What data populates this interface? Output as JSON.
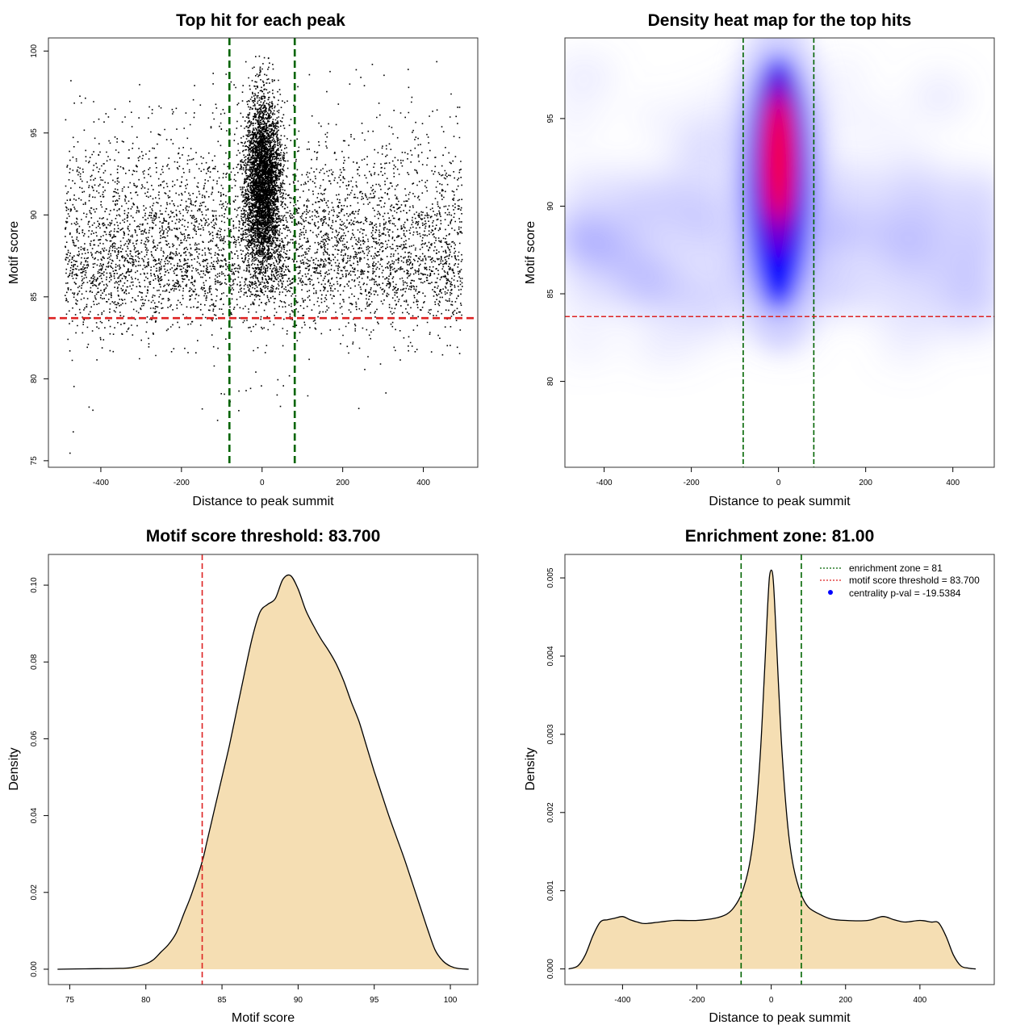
{
  "colors": {
    "threshold_line": "#dd2222",
    "zone_line": "#006400",
    "density_fill": "#f5deb3",
    "heat_low": "#ffffff",
    "heat_mid": "#0000ff",
    "heat_high": "#ff0000",
    "points": "#000000"
  },
  "chart_data": [
    {
      "id": "scatter",
      "type": "scatter",
      "title": "Top hit for each peak",
      "xlabel": "Distance to peak summit",
      "ylabel": "Motif score",
      "xlim": [
        -530,
        535
      ],
      "ylim": [
        74.6,
        100.8
      ],
      "xticks": [
        -400,
        -200,
        0,
        200,
        400
      ],
      "yticks": [
        75,
        80,
        85,
        90,
        95,
        100
      ],
      "hlines": [
        {
          "value": 83.7,
          "color": "threshold",
          "style": "dashed"
        }
      ],
      "vlines": [
        {
          "value": -81,
          "color": "zone",
          "style": "dashed"
        },
        {
          "value": 81,
          "color": "zone",
          "style": "dashed"
        }
      ],
      "grid": false,
      "data_description": {
        "x_range": [
          -490,
          495
        ],
        "score_range": [
          75.5,
          99.8
        ],
        "background_score_mode": 87.5,
        "central_score_mode": 92,
        "central_spread": 22
      }
    },
    {
      "id": "heatmap",
      "type": "heatmap",
      "title": "Density heat map for the top hits",
      "xlabel": "Distance to peak summit",
      "ylabel": "Motif score",
      "xlim": [
        -490,
        495
      ],
      "ylim": [
        75.1,
        99.6
      ],
      "xticks": [
        -400,
        -200,
        0,
        200,
        400
      ],
      "yticks": [
        80,
        85,
        90,
        95
      ],
      "hlines": [
        {
          "value": 83.7,
          "color": "threshold",
          "style": "dashed"
        }
      ],
      "vlines": [
        {
          "value": -81,
          "color": "zone",
          "style": "dashed"
        },
        {
          "value": 81,
          "color": "zone",
          "style": "dashed"
        }
      ],
      "colorscale": [
        "white",
        "blue",
        "red"
      ],
      "hotspot": {
        "x": 0,
        "y": 92.5
      }
    },
    {
      "id": "score_density",
      "type": "area",
      "title": "Motif score threshold: 83.700",
      "xlabel": "Motif score",
      "ylabel": "Density",
      "xlim": [
        73.6,
        101.8
      ],
      "ylim": [
        -0.004,
        0.108
      ],
      "xticks": [
        75,
        80,
        85,
        90,
        95,
        100
      ],
      "yticks": [
        0.0,
        0.02,
        0.04,
        0.06,
        0.08,
        0.1
      ],
      "ytick_labels": [
        "0.00",
        "0.02",
        "0.04",
        "0.06",
        "0.08",
        "0.10"
      ],
      "vlines": [
        {
          "value": 83.7,
          "color": "threshold",
          "style": "dashed"
        }
      ],
      "x": [
        74.2,
        76,
        78,
        79,
        80,
        80.5,
        81,
        81.5,
        82,
        82.5,
        83,
        83.7,
        84,
        84.5,
        85,
        85.5,
        86,
        86.5,
        87,
        87.5,
        88,
        88.5,
        89,
        89.5,
        90,
        90.5,
        91,
        91.5,
        92,
        92.5,
        93,
        93.5,
        94,
        94.5,
        95,
        95.5,
        96,
        96.5,
        97,
        97.5,
        98,
        98.5,
        99,
        99.5,
        100,
        100.5,
        101.2
      ],
      "y": [
        0,
        0.0001,
        0.0002,
        0.0004,
        0.0014,
        0.0025,
        0.0045,
        0.0065,
        0.0095,
        0.0145,
        0.0195,
        0.028,
        0.033,
        0.0415,
        0.05,
        0.0585,
        0.068,
        0.0775,
        0.0865,
        0.093,
        0.095,
        0.0965,
        0.1015,
        0.1025,
        0.099,
        0.0935,
        0.0895,
        0.086,
        0.083,
        0.0795,
        0.075,
        0.0695,
        0.0645,
        0.058,
        0.0515,
        0.0455,
        0.0395,
        0.034,
        0.0285,
        0.0225,
        0.0165,
        0.0105,
        0.005,
        0.0022,
        0.0008,
        0.0002,
        0
      ]
    },
    {
      "id": "distance_density",
      "type": "area",
      "title": "Enrichment zone: 81.00",
      "xlabel": "Distance to peak summit",
      "ylabel": "Density",
      "xlim": [
        -555,
        600
      ],
      "ylim": [
        -0.0002,
        0.0053
      ],
      "xticks": [
        -400,
        -200,
        0,
        200,
        400
      ],
      "yticks": [
        0,
        0.001,
        0.002,
        0.003,
        0.004,
        0.005
      ],
      "ytick_labels": [
        "0.000",
        "0.001",
        "0.002",
        "0.003",
        "0.004",
        "0.005"
      ],
      "vlines": [
        {
          "value": -81,
          "color": "zone",
          "style": "dashed"
        },
        {
          "value": 81,
          "color": "zone",
          "style": "dashed"
        }
      ],
      "x": [
        -545,
        -520,
        -500,
        -480,
        -460,
        -440,
        -420,
        -400,
        -380,
        -360,
        -340,
        -300,
        -260,
        -200,
        -150,
        -120,
        -100,
        -80,
        -60,
        -45,
        -30,
        -20,
        -10,
        -5,
        0,
        5,
        10,
        20,
        30,
        45,
        60,
        80,
        100,
        130,
        160,
        200,
        260,
        300,
        330,
        360,
        400,
        430,
        450,
        470,
        490,
        510,
        530,
        550
      ],
      "y": [
        0,
        4e-05,
        0.00018,
        0.00042,
        0.0006,
        0.00063,
        0.00065,
        0.00067,
        0.00063,
        0.0006,
        0.00058,
        0.0006,
        0.00062,
        0.00062,
        0.00065,
        0.0007,
        0.00079,
        0.00096,
        0.0013,
        0.0018,
        0.0027,
        0.0036,
        0.0046,
        0.005,
        0.0051,
        0.005,
        0.0046,
        0.0036,
        0.0027,
        0.0018,
        0.0013,
        0.00096,
        0.00079,
        0.0007,
        0.00064,
        0.00062,
        0.00062,
        0.00067,
        0.00063,
        0.0006,
        0.00062,
        0.0006,
        0.00059,
        0.00042,
        0.00018,
        4e-05,
        1e-05,
        0
      ],
      "legend": {
        "position": "top-right",
        "entries": [
          {
            "label": "enrichment zone = 81",
            "kind": "dotted-line",
            "color": "zone"
          },
          {
            "label": "motif score threshold = 83.700",
            "kind": "dotted-line",
            "color": "threshold"
          },
          {
            "label": "centrality p-val = -19.5384",
            "kind": "point",
            "color": "#0000ff"
          }
        ]
      }
    }
  ]
}
